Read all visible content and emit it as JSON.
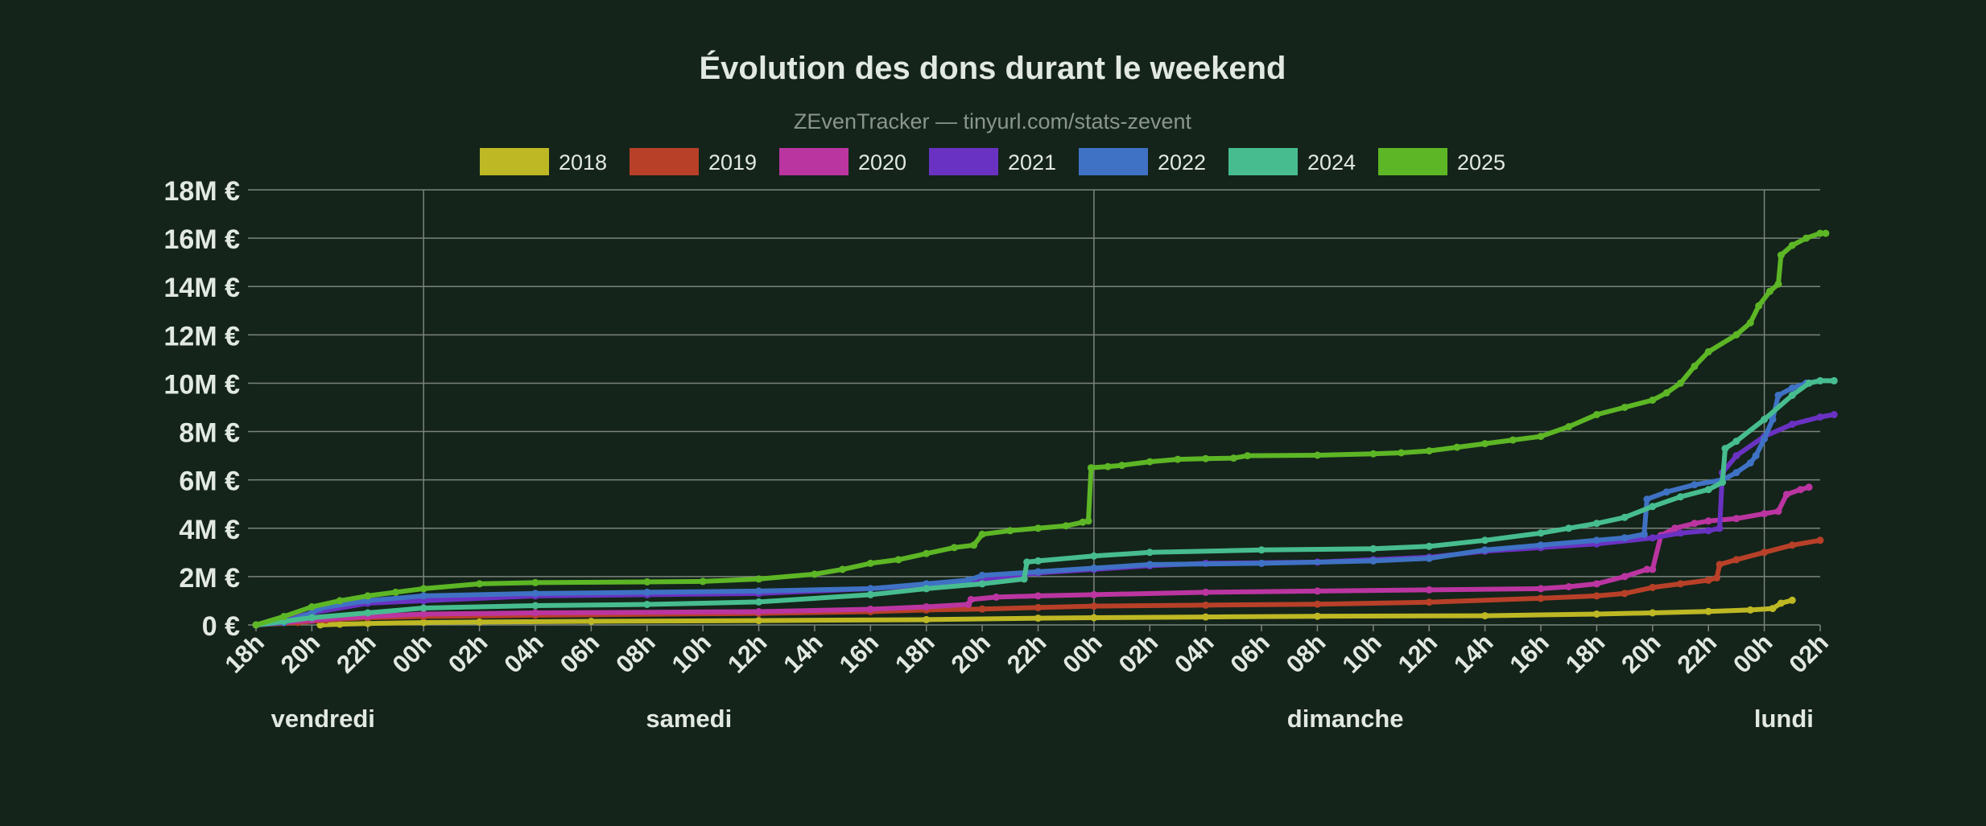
{
  "chart_data": {
    "type": "line",
    "title": "Évolution des dons durant le weekend",
    "subtitle": "ZEvenTracker — tinyurl.com/stats-zevent",
    "legend_position": "top",
    "grid": true,
    "x_unit": "hours",
    "xlim": [
      18,
      74
    ],
    "ylim": [
      0,
      18000000
    ],
    "y_ticks": [
      {
        "value": 0,
        "label": "0 €"
      },
      {
        "value": 2000000,
        "label": "2M €"
      },
      {
        "value": 4000000,
        "label": "4M €"
      },
      {
        "value": 6000000,
        "label": "6M €"
      },
      {
        "value": 8000000,
        "label": "8M €"
      },
      {
        "value": 10000000,
        "label": "10M €"
      },
      {
        "value": 12000000,
        "label": "12M €"
      },
      {
        "value": 14000000,
        "label": "14M €"
      },
      {
        "value": 16000000,
        "label": "16M €"
      },
      {
        "value": 18000000,
        "label": "18M €"
      }
    ],
    "x_ticks": [
      {
        "value": 18,
        "label": "18h"
      },
      {
        "value": 20,
        "label": "20h"
      },
      {
        "value": 22,
        "label": "22h"
      },
      {
        "value": 24,
        "label": "00h"
      },
      {
        "value": 26,
        "label": "02h"
      },
      {
        "value": 28,
        "label": "04h"
      },
      {
        "value": 30,
        "label": "06h"
      },
      {
        "value": 32,
        "label": "08h"
      },
      {
        "value": 34,
        "label": "10h"
      },
      {
        "value": 36,
        "label": "12h"
      },
      {
        "value": 38,
        "label": "14h"
      },
      {
        "value": 40,
        "label": "16h"
      },
      {
        "value": 42,
        "label": "18h"
      },
      {
        "value": 44,
        "label": "20h"
      },
      {
        "value": 46,
        "label": "22h"
      },
      {
        "value": 48,
        "label": "00h"
      },
      {
        "value": 50,
        "label": "02h"
      },
      {
        "value": 52,
        "label": "04h"
      },
      {
        "value": 54,
        "label": "06h"
      },
      {
        "value": 56,
        "label": "08h"
      },
      {
        "value": 58,
        "label": "10h"
      },
      {
        "value": 60,
        "label": "12h"
      },
      {
        "value": 62,
        "label": "14h"
      },
      {
        "value": 64,
        "label": "16h"
      },
      {
        "value": 66,
        "label": "18h"
      },
      {
        "value": 68,
        "label": "20h"
      },
      {
        "value": 70,
        "label": "22h"
      },
      {
        "value": 72,
        "label": "00h"
      },
      {
        "value": 74,
        "label": "02h"
      }
    ],
    "day_gridlines": [
      24,
      48,
      72
    ],
    "day_labels": [
      {
        "label": "vendredi",
        "x": 20.4
      },
      {
        "label": "samedi",
        "x": 33.5
      },
      {
        "label": "dimanche",
        "x": 57.0
      },
      {
        "label": "lundi",
        "x": 72.7
      }
    ],
    "series": [
      {
        "name": "2018",
        "color": "#bdb824",
        "points": [
          [
            20.3,
            0.0
          ],
          [
            21.0,
            0.03
          ],
          [
            22.0,
            0.06
          ],
          [
            24.0,
            0.1
          ],
          [
            26.0,
            0.12
          ],
          [
            30.0,
            0.15
          ],
          [
            36.0,
            0.18
          ],
          [
            42.0,
            0.22
          ],
          [
            46.0,
            0.28
          ],
          [
            48.0,
            0.3
          ],
          [
            52.0,
            0.33
          ],
          [
            56.0,
            0.36
          ],
          [
            62.0,
            0.38
          ],
          [
            66.0,
            0.45
          ],
          [
            68.0,
            0.5
          ],
          [
            70.0,
            0.56
          ],
          [
            71.5,
            0.62
          ],
          [
            72.3,
            0.68
          ],
          [
            72.6,
            0.9
          ],
          [
            73.0,
            1.02
          ]
        ]
      },
      {
        "name": "2019",
        "color": "#b84028",
        "points": [
          [
            18.0,
            0.0
          ],
          [
            19.5,
            0.1
          ],
          [
            20.5,
            0.2
          ],
          [
            22.0,
            0.3
          ],
          [
            24.0,
            0.35
          ],
          [
            28.0,
            0.4
          ],
          [
            36.0,
            0.48
          ],
          [
            40.0,
            0.55
          ],
          [
            42.0,
            0.62
          ],
          [
            44.0,
            0.66
          ],
          [
            46.0,
            0.72
          ],
          [
            48.0,
            0.78
          ],
          [
            52.0,
            0.82
          ],
          [
            56.0,
            0.86
          ],
          [
            60.0,
            0.94
          ],
          [
            64.0,
            1.1
          ],
          [
            66.0,
            1.2
          ],
          [
            67.0,
            1.3
          ],
          [
            68.0,
            1.55
          ],
          [
            69.0,
            1.7
          ],
          [
            70.0,
            1.85
          ],
          [
            70.3,
            1.95
          ],
          [
            70.4,
            2.5
          ],
          [
            71.0,
            2.7
          ],
          [
            72.0,
            3.0
          ],
          [
            73.0,
            3.3
          ],
          [
            74.0,
            3.5
          ]
        ]
      },
      {
        "name": "2020",
        "color": "#bb35a1",
        "points": [
          [
            18.0,
            0.0
          ],
          [
            19.0,
            0.1
          ],
          [
            20.0,
            0.2
          ],
          [
            22.0,
            0.35
          ],
          [
            24.0,
            0.45
          ],
          [
            28.0,
            0.5
          ],
          [
            36.0,
            0.55
          ],
          [
            40.0,
            0.65
          ],
          [
            42.0,
            0.75
          ],
          [
            43.5,
            0.85
          ],
          [
            43.6,
            1.05
          ],
          [
            44.5,
            1.15
          ],
          [
            46.0,
            1.2
          ],
          [
            48.0,
            1.25
          ],
          [
            52.0,
            1.35
          ],
          [
            56.0,
            1.4
          ],
          [
            60.0,
            1.45
          ],
          [
            64.0,
            1.5
          ],
          [
            65.0,
            1.58
          ],
          [
            66.0,
            1.7
          ],
          [
            67.0,
            2.0
          ],
          [
            67.8,
            2.3
          ],
          [
            68.0,
            2.3
          ],
          [
            68.3,
            3.7
          ],
          [
            68.8,
            4.0
          ],
          [
            69.5,
            4.2
          ],
          [
            70.0,
            4.3
          ],
          [
            71.0,
            4.4
          ],
          [
            72.0,
            4.6
          ],
          [
            72.5,
            4.7
          ],
          [
            72.8,
            5.4
          ],
          [
            73.3,
            5.6
          ],
          [
            73.6,
            5.7
          ]
        ]
      },
      {
        "name": "2021",
        "color": "#6a32c2",
        "points": [
          [
            18.0,
            0.0
          ],
          [
            19.0,
            0.2
          ],
          [
            20.0,
            0.5
          ],
          [
            22.0,
            0.9
          ],
          [
            24.0,
            1.0
          ],
          [
            28.0,
            1.2
          ],
          [
            32.0,
            1.25
          ],
          [
            36.0,
            1.3
          ],
          [
            40.0,
            1.5
          ],
          [
            42.0,
            1.65
          ],
          [
            44.0,
            1.9
          ],
          [
            46.0,
            2.15
          ],
          [
            48.0,
            2.3
          ],
          [
            50.0,
            2.45
          ],
          [
            52.0,
            2.55
          ],
          [
            56.0,
            2.6
          ],
          [
            58.0,
            2.7
          ],
          [
            60.0,
            2.8
          ],
          [
            62.0,
            3.05
          ],
          [
            64.0,
            3.2
          ],
          [
            66.0,
            3.35
          ],
          [
            68.0,
            3.6
          ],
          [
            69.0,
            3.8
          ],
          [
            70.0,
            3.9
          ],
          [
            70.4,
            4.0
          ],
          [
            70.5,
            6.3
          ],
          [
            71.0,
            7.0
          ],
          [
            72.0,
            7.8
          ],
          [
            73.0,
            8.3
          ],
          [
            74.0,
            8.6
          ],
          [
            74.5,
            8.7
          ]
        ]
      },
      {
        "name": "2022",
        "color": "#3f72c4",
        "points": [
          [
            18.0,
            0.0
          ],
          [
            19.0,
            0.1
          ],
          [
            20.0,
            0.5
          ],
          [
            20.3,
            0.7
          ],
          [
            22.0,
            1.0
          ],
          [
            24.0,
            1.2
          ],
          [
            28.0,
            1.3
          ],
          [
            32.0,
            1.35
          ],
          [
            36.0,
            1.4
          ],
          [
            40.0,
            1.5
          ],
          [
            42.0,
            1.7
          ],
          [
            43.5,
            1.85
          ],
          [
            44.0,
            2.05
          ],
          [
            46.0,
            2.2
          ],
          [
            48.0,
            2.35
          ],
          [
            50.0,
            2.5
          ],
          [
            54.0,
            2.55
          ],
          [
            58.0,
            2.65
          ],
          [
            60.0,
            2.75
          ],
          [
            62.0,
            3.1
          ],
          [
            64.0,
            3.3
          ],
          [
            66.0,
            3.5
          ],
          [
            67.0,
            3.6
          ],
          [
            67.7,
            3.75
          ],
          [
            67.8,
            5.2
          ],
          [
            68.5,
            5.5
          ],
          [
            69.5,
            5.8
          ],
          [
            70.5,
            6.0
          ],
          [
            71.0,
            6.3
          ],
          [
            71.5,
            6.7
          ],
          [
            71.7,
            7.0
          ],
          [
            72.0,
            7.7
          ],
          [
            72.3,
            8.5
          ],
          [
            72.5,
            9.5
          ],
          [
            73.0,
            9.8
          ],
          [
            73.5,
            10.0
          ],
          [
            74.0,
            10.1
          ],
          [
            74.5,
            10.1
          ]
        ]
      },
      {
        "name": "2024",
        "color": "#47bd8f",
        "points": [
          [
            18.0,
            0.0
          ],
          [
            19.0,
            0.15
          ],
          [
            20.0,
            0.3
          ],
          [
            22.0,
            0.5
          ],
          [
            24.0,
            0.7
          ],
          [
            28.0,
            0.8
          ],
          [
            32.0,
            0.85
          ],
          [
            36.0,
            0.95
          ],
          [
            40.0,
            1.25
          ],
          [
            42.0,
            1.5
          ],
          [
            44.0,
            1.7
          ],
          [
            45.5,
            1.9
          ],
          [
            45.6,
            2.6
          ],
          [
            46.0,
            2.65
          ],
          [
            48.0,
            2.85
          ],
          [
            50.0,
            3.0
          ],
          [
            54.0,
            3.1
          ],
          [
            58.0,
            3.15
          ],
          [
            60.0,
            3.25
          ],
          [
            62.0,
            3.5
          ],
          [
            64.0,
            3.8
          ],
          [
            65.0,
            4.0
          ],
          [
            66.0,
            4.2
          ],
          [
            67.0,
            4.45
          ],
          [
            68.0,
            4.9
          ],
          [
            69.0,
            5.3
          ],
          [
            70.0,
            5.6
          ],
          [
            70.5,
            5.9
          ],
          [
            70.6,
            7.3
          ],
          [
            71.0,
            7.6
          ],
          [
            72.0,
            8.5
          ],
          [
            73.0,
            9.5
          ],
          [
            73.6,
            10.0
          ],
          [
            74.0,
            10.1
          ],
          [
            74.5,
            10.1
          ]
        ]
      },
      {
        "name": "2025",
        "color": "#5db625",
        "points": [
          [
            18.0,
            0.0
          ],
          [
            19.0,
            0.35
          ],
          [
            20.0,
            0.75
          ],
          [
            21.0,
            1.0
          ],
          [
            22.0,
            1.2
          ],
          [
            23.0,
            1.35
          ],
          [
            24.0,
            1.5
          ],
          [
            26.0,
            1.7
          ],
          [
            28.0,
            1.75
          ],
          [
            32.0,
            1.78
          ],
          [
            34.0,
            1.8
          ],
          [
            36.0,
            1.9
          ],
          [
            38.0,
            2.1
          ],
          [
            39.0,
            2.3
          ],
          [
            40.0,
            2.55
          ],
          [
            41.0,
            2.7
          ],
          [
            42.0,
            2.95
          ],
          [
            43.0,
            3.2
          ],
          [
            43.7,
            3.3
          ],
          [
            44.0,
            3.75
          ],
          [
            45.0,
            3.9
          ],
          [
            46.0,
            4.0
          ],
          [
            47.0,
            4.1
          ],
          [
            47.6,
            4.25
          ],
          [
            47.8,
            4.3
          ],
          [
            47.9,
            6.5
          ],
          [
            48.5,
            6.55
          ],
          [
            49.0,
            6.6
          ],
          [
            50.0,
            6.75
          ],
          [
            51.0,
            6.85
          ],
          [
            52.0,
            6.88
          ],
          [
            53.0,
            6.9
          ],
          [
            53.5,
            7.0
          ],
          [
            56.0,
            7.02
          ],
          [
            58.0,
            7.08
          ],
          [
            59.0,
            7.12
          ],
          [
            60.0,
            7.2
          ],
          [
            61.0,
            7.35
          ],
          [
            62.0,
            7.5
          ],
          [
            63.0,
            7.65
          ],
          [
            64.0,
            7.8
          ],
          [
            65.0,
            8.2
          ],
          [
            66.0,
            8.7
          ],
          [
            67.0,
            9.0
          ],
          [
            68.0,
            9.3
          ],
          [
            68.5,
            9.6
          ],
          [
            69.0,
            10.0
          ],
          [
            69.5,
            10.7
          ],
          [
            70.0,
            11.3
          ],
          [
            71.0,
            12.0
          ],
          [
            71.5,
            12.5
          ],
          [
            71.8,
            13.2
          ],
          [
            72.2,
            13.8
          ],
          [
            72.5,
            14.1
          ],
          [
            72.6,
            15.3
          ],
          [
            73.0,
            15.7
          ],
          [
            73.5,
            16.0
          ],
          [
            74.0,
            16.2
          ],
          [
            74.2,
            16.2
          ]
        ]
      }
    ]
  }
}
